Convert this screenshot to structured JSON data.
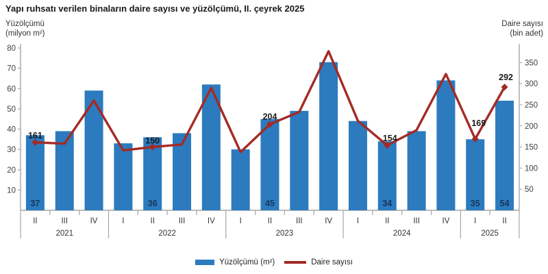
{
  "title": "Yapı ruhsatı verilen binaların daire sayısı ve yüzölçümü, II. çeyrek 2025",
  "left_axis": {
    "title_line1": "Yüzölçümü",
    "title_line2": "(milyon m²)",
    "ticks": [
      80,
      70,
      60,
      50,
      40,
      30,
      20,
      10
    ],
    "range": [
      0,
      80
    ]
  },
  "right_axis": {
    "title_line1": "Daire sayısı",
    "title_line2": "(bin adet)",
    "ticks": [
      350,
      300,
      250,
      200,
      150,
      100,
      50
    ],
    "range": [
      0,
      400
    ]
  },
  "colors": {
    "bar": "#2B7BBE",
    "line": "#A42A25",
    "bar_label": "#17365D",
    "line_label": "#1a1a1a",
    "axis": "#A6A6A6",
    "tick_text": "#404040"
  },
  "legend": {
    "items": [
      {
        "label": "Yüzölçümü (m²)",
        "type": "bar"
      },
      {
        "label": "Daire sayısı",
        "type": "line"
      }
    ]
  },
  "chart_data": {
    "type": "bar+line",
    "quarter_labels": [
      "II",
      "III",
      "IV",
      "I",
      "II",
      "III",
      "IV",
      "I",
      "II",
      "III",
      "IV",
      "I",
      "II",
      "III",
      "IV",
      "I",
      "II"
    ],
    "year_groups": [
      {
        "label": "2021",
        "quarters": 3
      },
      {
        "label": "2022",
        "quarters": 4
      },
      {
        "label": "2023",
        "quarters": 4
      },
      {
        "label": "2024",
        "quarters": 4
      },
      {
        "label": "2025",
        "quarters": 2
      }
    ],
    "categories": [
      "2021-II",
      "2021-III",
      "2021-IV",
      "2022-I",
      "2022-II",
      "2022-III",
      "2022-IV",
      "2023-I",
      "2023-II",
      "2023-III",
      "2023-IV",
      "2024-I",
      "2024-II",
      "2024-III",
      "2024-IV",
      "2025-I",
      "2025-II"
    ],
    "series": [
      {
        "name": "Yüzölçümü (m²)",
        "type": "bar",
        "axis": "left",
        "values": [
          37,
          39,
          59,
          33,
          36,
          38,
          62,
          30,
          45,
          49,
          73,
          44,
          34,
          39,
          64,
          35,
          54
        ],
        "point_labels": {
          "0": "37",
          "4": "36",
          "8": "45",
          "12": "34",
          "15": "35",
          "16": "54"
        }
      },
      {
        "name": "Daire sayısı",
        "type": "line",
        "axis": "right",
        "values": [
          161,
          158,
          260,
          142,
          150,
          156,
          290,
          138,
          204,
          233,
          377,
          212,
          154,
          190,
          323,
          169,
          292
        ],
        "point_labels": {
          "0": "161",
          "4": "150",
          "8": "204",
          "12": "154",
          "15": "169",
          "16": "292"
        }
      }
    ],
    "left_ylim": [
      0,
      80
    ],
    "right_ylim": [
      0,
      400
    ],
    "grid": false,
    "legend_position": "bottom"
  }
}
